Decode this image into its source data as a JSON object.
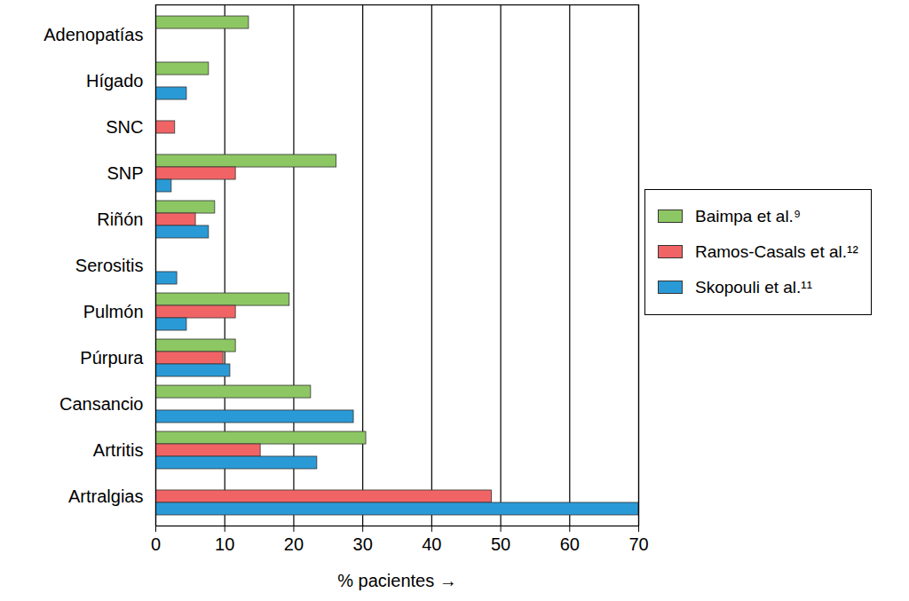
{
  "chart_data": {
    "type": "bar",
    "orientation": "horizontal",
    "categories": [
      "Adenopatías",
      "Hígado",
      "SNC",
      "SNP",
      "Riñón",
      "Serositis",
      "Pulmón",
      "Púrpura",
      "Cansancio",
      "Artritis",
      "Artralgias"
    ],
    "series": [
      {
        "name": "Baimpa et al.⁹",
        "color": "#8dc763",
        "values": [
          13.5,
          7.7,
          null,
          26.2,
          8.6,
          null,
          19.4,
          11.6,
          22.5,
          30.5,
          null
        ]
      },
      {
        "name": "Ramos-Casals et al.¹²",
        "color": "#f16466",
        "values": [
          null,
          null,
          2.8,
          11.6,
          5.8,
          null,
          11.6,
          9.8,
          null,
          15.2,
          48.7
        ]
      },
      {
        "name": "Skopouli et al.¹¹",
        "color": "#2a9ad6",
        "values": [
          null,
          4.5,
          null,
          2.3,
          7.7,
          3.1,
          4.5,
          10.8,
          28.7,
          23.4,
          70
        ]
      }
    ],
    "xlabel": "% pacientes",
    "xlim": [
      0,
      70
    ],
    "xticks": [
      0,
      10,
      20,
      30,
      40,
      50,
      60,
      70
    ],
    "grid": true,
    "legend": "right"
  }
}
